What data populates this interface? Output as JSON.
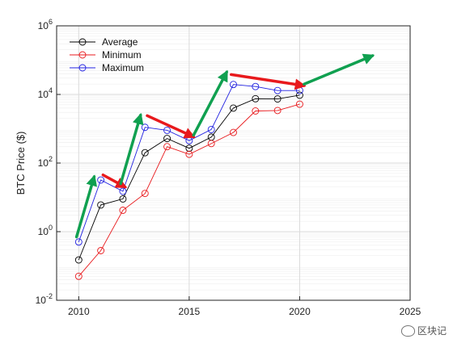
{
  "chart_data": {
    "type": "line",
    "ylabel": "BTC Price ($)",
    "xlim": [
      2009,
      2025
    ],
    "ylim": [
      0.01,
      1000000
    ],
    "yscale": "log",
    "grid": true,
    "legend_position": "top-left",
    "x_ticks": [
      {
        "value": 2010,
        "label": "2010"
      },
      {
        "value": 2015,
        "label": "2015"
      },
      {
        "value": 2020,
        "label": "2020"
      },
      {
        "value": 2025,
        "label": "2025"
      }
    ],
    "y_ticks": [
      {
        "value": 0.01,
        "base": "10",
        "exp": "-2"
      },
      {
        "value": 1,
        "base": "10",
        "exp": "0"
      },
      {
        "value": 100,
        "base": "10",
        "exp": "2"
      },
      {
        "value": 10000,
        "base": "10",
        "exp": "4"
      },
      {
        "value": 1000000,
        "base": "10",
        "exp": "6"
      }
    ],
    "x": [
      2010,
      2011,
      2012,
      2013,
      2014,
      2015,
      2016,
      2017,
      2018,
      2019,
      2020
    ],
    "series": [
      {
        "name": "Average",
        "color": "#000000",
        "marker": "circle-open",
        "values": [
          0.15,
          6,
          9,
          200,
          520,
          270,
          570,
          4000,
          7500,
          7400,
          9500
        ]
      },
      {
        "name": "Minimum",
        "color": "#e8191c",
        "marker": "circle-open",
        "values": [
          0.05,
          0.28,
          4.2,
          13,
          300,
          180,
          370,
          780,
          3300,
          3400,
          5200
        ]
      },
      {
        "name": "Maximum",
        "color": "#1f1fe0",
        "marker": "circle-open",
        "values": [
          0.5,
          32,
          15,
          1100,
          900,
          450,
          950,
          19500,
          17000,
          13000,
          13000
        ]
      }
    ],
    "annotations": [
      {
        "type": "arrow",
        "color": "#10a050",
        "from": [
          2009.9,
          0.7
        ],
        "to": [
          2010.7,
          40
        ]
      },
      {
        "type": "arrow",
        "color": "#e8191c",
        "from": [
          2011.1,
          45
        ],
        "to": [
          2012.1,
          20
        ]
      },
      {
        "type": "arrow",
        "color": "#10a050",
        "from": [
          2011.9,
          25
        ],
        "to": [
          2012.8,
          2500
        ]
      },
      {
        "type": "arrow",
        "color": "#e8191c",
        "from": [
          2013.1,
          2400
        ],
        "to": [
          2015.2,
          580
        ]
      },
      {
        "type": "arrow",
        "color": "#10a050",
        "from": [
          2015.2,
          650
        ],
        "to": [
          2016.7,
          45000
        ]
      },
      {
        "type": "arrow",
        "color": "#e8191c",
        "from": [
          2016.9,
          38000
        ],
        "to": [
          2020.2,
          18000
        ]
      },
      {
        "type": "arrow",
        "color": "#10a050",
        "from": [
          2020.2,
          20000
        ],
        "to": [
          2023.3,
          135000
        ]
      }
    ]
  },
  "watermark": {
    "text": "区块记"
  }
}
